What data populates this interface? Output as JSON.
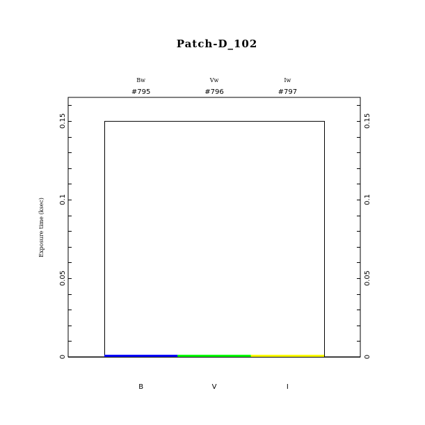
{
  "chart_data": {
    "type": "bar",
    "title": "Patch-D_102",
    "ylabel": "Exposure time (ksec)",
    "xlabel": "",
    "ylim": [
      0,
      0.165
    ],
    "yticks": [
      0,
      0.05,
      0.1,
      0.15
    ],
    "ytick_labels": [
      "0",
      "0.05",
      "0.1",
      "0.15"
    ],
    "minor_tick_step": 0.01,
    "grid": false,
    "categories": [
      "B",
      "V",
      "I"
    ],
    "filters": [
      "Bw",
      "Vw",
      "Iw"
    ],
    "ids": [
      "#795",
      "#796",
      "#797"
    ],
    "values": [
      0.001,
      0.001,
      0.001
    ],
    "colors": [
      "#0000ff",
      "#00ff00",
      "#ffff00"
    ],
    "envelope_value": 0.15
  }
}
